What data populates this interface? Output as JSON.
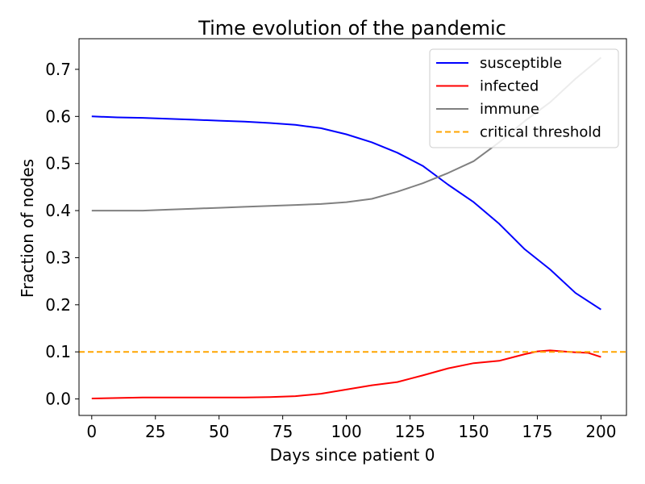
{
  "chart_data": {
    "type": "line",
    "title": "Time evolution of the pandemic",
    "xlabel": "Days since patient 0",
    "ylabel": "Fraction of nodes",
    "xlim": [
      -5,
      210
    ],
    "ylim": [
      -0.035,
      0.765
    ],
    "xticks": [
      0,
      25,
      50,
      75,
      100,
      125,
      150,
      175,
      200
    ],
    "yticks": [
      0.0,
      0.1,
      0.2,
      0.3,
      0.4,
      0.5,
      0.6,
      0.7
    ],
    "xtick_labels": [
      "0",
      "25",
      "50",
      "75",
      "100",
      "125",
      "150",
      "175",
      "200"
    ],
    "ytick_labels": [
      "0.0",
      "0.1",
      "0.2",
      "0.3",
      "0.4",
      "0.5",
      "0.6",
      "0.7"
    ],
    "legend_position": "top-right",
    "grid": false,
    "series": [
      {
        "name": "susceptible",
        "color": "#0000ff",
        "dash": "solid",
        "x": [
          0,
          10,
          20,
          30,
          40,
          50,
          60,
          70,
          80,
          90,
          100,
          110,
          120,
          130,
          140,
          150,
          160,
          170,
          180,
          190,
          200
        ],
        "y": [
          0.6,
          0.598,
          0.597,
          0.595,
          0.593,
          0.591,
          0.589,
          0.586,
          0.582,
          0.575,
          0.562,
          0.545,
          0.523,
          0.495,
          0.455,
          0.418,
          0.372,
          0.318,
          0.275,
          0.225,
          0.19
        ]
      },
      {
        "name": "infected",
        "color": "#ff0000",
        "dash": "solid",
        "x": [
          0,
          10,
          20,
          30,
          40,
          50,
          60,
          70,
          80,
          90,
          100,
          110,
          120,
          130,
          140,
          150,
          160,
          170,
          175,
          180,
          185,
          190,
          195,
          200
        ],
        "y": [
          0.001,
          0.002,
          0.003,
          0.003,
          0.003,
          0.003,
          0.003,
          0.004,
          0.006,
          0.011,
          0.02,
          0.029,
          0.036,
          0.05,
          0.065,
          0.076,
          0.081,
          0.095,
          0.101,
          0.103,
          0.101,
          0.099,
          0.098,
          0.089
        ]
      },
      {
        "name": "immune",
        "color": "#808080",
        "dash": "solid",
        "x": [
          0,
          10,
          20,
          30,
          40,
          50,
          60,
          70,
          80,
          90,
          100,
          110,
          120,
          130,
          140,
          150,
          160,
          170,
          180,
          190,
          200
        ],
        "y": [
          0.4,
          0.4,
          0.4,
          0.402,
          0.404,
          0.406,
          0.408,
          0.41,
          0.412,
          0.414,
          0.418,
          0.425,
          0.44,
          0.458,
          0.48,
          0.505,
          0.545,
          0.59,
          0.63,
          0.68,
          0.725
        ]
      },
      {
        "name": "critical threshold",
        "color": "#ffa500",
        "dash": "dashed",
        "x": [
          -5,
          210
        ],
        "y": [
          0.1,
          0.1
        ]
      }
    ]
  }
}
